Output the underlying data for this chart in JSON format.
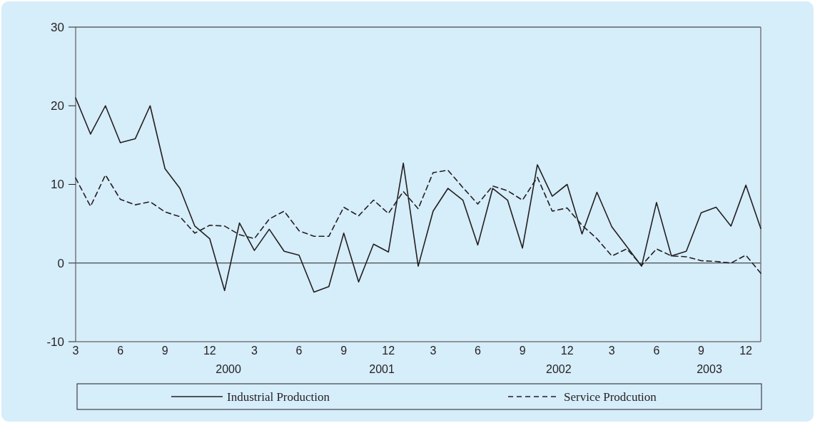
{
  "chart_data": {
    "type": "line",
    "categories": [
      "3",
      null,
      null,
      "6",
      null,
      null,
      "9",
      null,
      null,
      "12",
      null,
      null,
      "3",
      null,
      null,
      "6",
      null,
      null,
      "9",
      null,
      null,
      "12",
      null,
      null,
      "3",
      null,
      null,
      "6",
      null,
      null,
      "9",
      null,
      null,
      "12",
      null,
      null,
      "3",
      null,
      null,
      "6",
      null,
      null,
      "9",
      null,
      null,
      "12",
      null
    ],
    "series": [
      {
        "name": "Industrial Production",
        "color": "#231f20",
        "line_style": "solid",
        "values": [
          21,
          16.4,
          20,
          15.3,
          15.8,
          20,
          12,
          9.5,
          4.7,
          3.1,
          -3.5,
          5.1,
          1.6,
          4.3,
          1.5,
          1.0,
          -3.7,
          -3.0,
          3.8,
          -2.4,
          2.4,
          1.4,
          12.7,
          -0.4,
          6.6,
          9.5,
          8.0,
          2.3,
          9.5,
          8.0,
          1.9,
          12.5,
          8.5,
          10.0,
          3.7,
          9.0,
          4.6,
          2.1,
          -0.4,
          7.7,
          0.9,
          1.5,
          6.4,
          7.1,
          4.7,
          9.9,
          4.4
        ]
      },
      {
        "name": "Service Prodcution",
        "color": "#231f20",
        "line_style": "dashed",
        "values": [
          10.8,
          7.2,
          11.2,
          8.1,
          7.4,
          7.8,
          6.5,
          5.9,
          3.8,
          4.8,
          4.7,
          3.6,
          3.1,
          5.6,
          6.6,
          4.1,
          3.4,
          3.4,
          7.1,
          6.0,
          8.0,
          6.3,
          9.1,
          6.9,
          11.5,
          11.8,
          9.6,
          7.5,
          9.8,
          9.2,
          8.0,
          10.9,
          6.6,
          7.0,
          4.8,
          3.1,
          0.9,
          1.8,
          -0.3,
          1.8,
          0.9,
          0.8,
          0.3,
          0.2,
          0.0,
          1.0,
          -1.3
        ]
      }
    ],
    "ylim": [
      -10,
      30
    ],
    "yticks": [
      -10,
      0,
      10,
      20,
      30
    ],
    "annotations": [
      "2000",
      "2001",
      "2002",
      "2003"
    ],
    "ref_lines": [
      {
        "axis": "y",
        "value": 0
      }
    ],
    "legend": "bottom",
    "marker": "none"
  }
}
